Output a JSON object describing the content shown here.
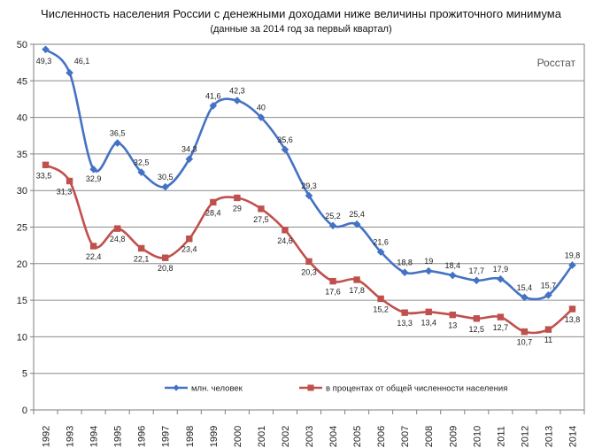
{
  "chart_data": {
    "type": "line",
    "title": "Численность населения России с денежными доходами ниже величины прожиточного минимума",
    "subtitle": "(данные за 2014 год за первый квартал)",
    "source": "Росстат",
    "x": [
      "1992",
      "1993",
      "1994",
      "1995",
      "1996",
      "1997",
      "1998",
      "1999",
      "2000",
      "2001",
      "2002",
      "2003",
      "2004",
      "2005",
      "2006",
      "2007",
      "2008",
      "2009",
      "2010",
      "2011",
      "2012",
      "2013",
      "2014"
    ],
    "ylim": [
      0,
      50
    ],
    "yticks": [
      0,
      5,
      10,
      15,
      20,
      25,
      30,
      35,
      40,
      45,
      50
    ],
    "grid": true,
    "legend_position": "bottom",
    "series": [
      {
        "name": "млн. человек",
        "color": "#4472c4",
        "marker": "diamond",
        "values": [
          49.3,
          46.1,
          32.9,
          36.5,
          32.5,
          30.5,
          34.3,
          41.6,
          42.3,
          40,
          35.6,
          29.3,
          25.2,
          25.4,
          21.6,
          18.8,
          19,
          18.4,
          17.7,
          17.9,
          15.4,
          15.7,
          19.8
        ],
        "labels": [
          "49,3",
          "46,1",
          "32,9",
          "36,5",
          "32,5",
          "30,5",
          "34,3",
          "41,6",
          "42,3",
          "40",
          "35,6",
          "29,3",
          "25,2",
          "25,4",
          "21,6",
          "18,8",
          "19",
          "18,4",
          "17,7",
          "17,9",
          "15,4",
          "15,7",
          "19,8"
        ]
      },
      {
        "name": "в процентах от общей численности населения",
        "color": "#c0504d",
        "marker": "square",
        "values": [
          33.5,
          31.3,
          22.4,
          24.8,
          22.1,
          20.8,
          23.4,
          28.4,
          29,
          27.5,
          24.6,
          20.3,
          17.6,
          17.8,
          15.2,
          13.3,
          13.4,
          13,
          12.5,
          12.7,
          10.7,
          11,
          13.8
        ],
        "labels": [
          "33,5",
          "31,3",
          "22,4",
          "24,8",
          "22,1",
          "20,8",
          "23,4",
          "28,4",
          "29",
          "27,5",
          "24,6",
          "20,3",
          "17,6",
          "17,8",
          "15,2",
          "13,3",
          "13,4",
          "13",
          "12,5",
          "12,7",
          "10,7",
          "11",
          "13,8"
        ]
      }
    ]
  }
}
